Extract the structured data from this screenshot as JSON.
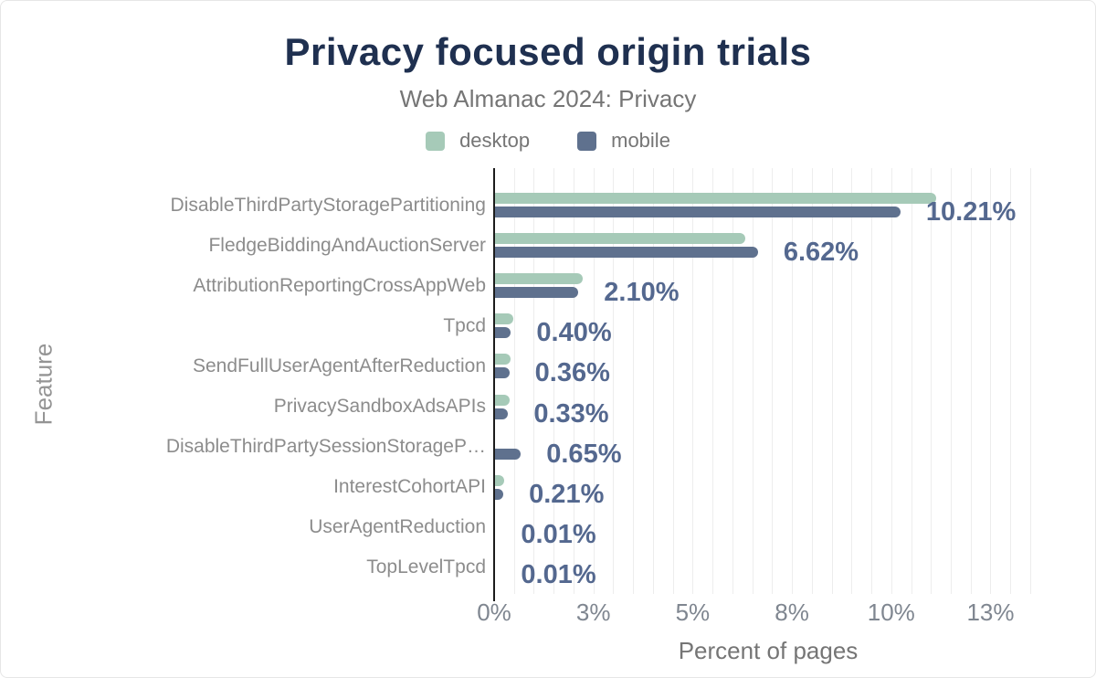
{
  "header": {
    "title": "Privacy focused origin trials",
    "subtitle": "Web Almanac 2024: Privacy"
  },
  "legend": [
    {
      "label": "desktop",
      "color": "#a6cab8"
    },
    {
      "label": "mobile",
      "color": "#5f718e"
    }
  ],
  "colors": {
    "desktop_bar": "#a6cab8",
    "mobile_bar": "#5f718e",
    "value_label": "#54688f",
    "title": "#1f3050",
    "gridline": "#ededed",
    "axis_line": "#1c1c1c"
  },
  "chart_data": {
    "type": "bar",
    "orientation": "horizontal",
    "title": "Privacy focused origin trials",
    "subtitle": "Web Almanac 2024: Privacy",
    "xlabel": "Percent of pages",
    "ylabel": "Feature",
    "xlim": [
      0,
      13.8
    ],
    "grid_step": 0.5,
    "legend_position": "top",
    "xticks": {
      "values": [
        0,
        2.5,
        5,
        7.5,
        10,
        12.5
      ],
      "labels": [
        "0%",
        "3%",
        "5%",
        "8%",
        "10%",
        "13%"
      ]
    },
    "categories": [
      "DisableThirdPartyStoragePartitioning",
      "FledgeBiddingAndAuctionServer",
      "AttributionReportingCrossAppWeb",
      "Tpcd",
      "SendFullUserAgentAfterReduction",
      "PrivacySandboxAdsAPIs",
      "DisableThirdPartySessionStorageP…",
      "InterestCohortAPI",
      "UserAgentReduction",
      "TopLevelTpcd"
    ],
    "series": [
      {
        "name": "desktop",
        "color": "#a6cab8",
        "values": [
          11.1,
          6.3,
          2.2,
          0.45,
          0.4,
          0.37,
          0,
          0.23,
          0.01,
          0.01
        ]
      },
      {
        "name": "mobile",
        "color": "#5f718e",
        "values": [
          10.21,
          6.62,
          2.1,
          0.4,
          0.36,
          0.33,
          0.65,
          0.21,
          0.01,
          0.01
        ]
      }
    ],
    "value_labels": [
      "10.21%",
      "6.62%",
      "2.10%",
      "0.40%",
      "0.36%",
      "0.33%",
      "0.65%",
      "0.21%",
      "0.01%",
      "0.01%"
    ],
    "value_labels_series": "mobile"
  }
}
